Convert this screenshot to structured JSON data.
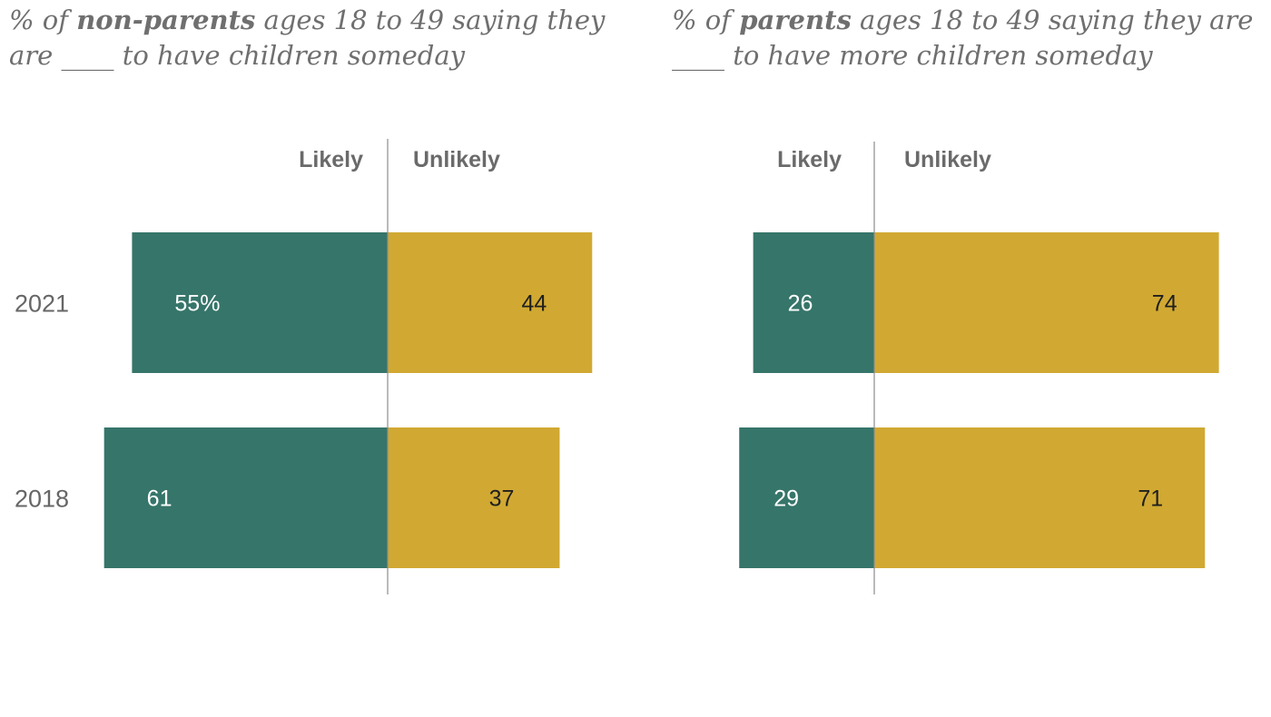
{
  "colors": {
    "likely": "#36756a",
    "unlikely": "#d1a932",
    "axis": "#8c8c8c"
  },
  "chart_data": [
    {
      "type": "bar",
      "orientation": "horizontal-diverging",
      "title": {
        "prefix": "% of ",
        "bold": "non-parents",
        "line1_rest": " ages 18 to 49 saying they",
        "line2": "are ____ to have children someday"
      },
      "column_headers": {
        "likely": "Likely",
        "unlikely": "Unlikely"
      },
      "categories": [
        "2021",
        "2018"
      ],
      "series": [
        {
          "name": "Likely",
          "values": [
            55,
            61
          ],
          "labels": [
            "55%",
            "61"
          ]
        },
        {
          "name": "Unlikely",
          "values": [
            44,
            37
          ],
          "labels": [
            "44",
            "37"
          ]
        }
      ]
    },
    {
      "type": "bar",
      "orientation": "horizontal-diverging",
      "title": {
        "prefix": "% of ",
        "bold": "parents",
        "line1_rest": " ages 18 to 49 saying they are",
        "line2": "____ to have more children someday"
      },
      "column_headers": {
        "likely": "Likely",
        "unlikely": "Unlikely"
      },
      "categories": [
        "2021",
        "2018"
      ],
      "series": [
        {
          "name": "Likely",
          "values": [
            26,
            29
          ],
          "labels": [
            "26",
            "29"
          ]
        },
        {
          "name": "Unlikely",
          "values": [
            74,
            71
          ],
          "labels": [
            "74",
            "71"
          ]
        }
      ]
    }
  ]
}
